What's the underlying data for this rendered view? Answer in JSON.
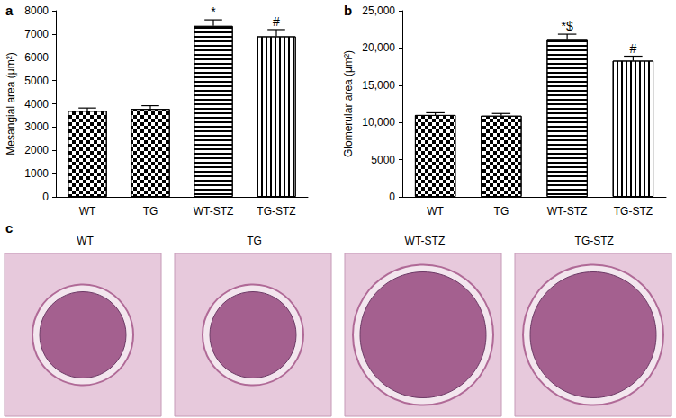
{
  "chart_data": [
    {
      "type": "bar",
      "panel": "a",
      "y_label": "Mesangial area (μm²)",
      "categories": [
        "WT",
        "TG",
        "WT-STZ",
        "TG-STZ"
      ],
      "values": [
        3700,
        3780,
        7350,
        6900
      ],
      "errors": [
        120,
        140,
        260,
        290
      ],
      "annotations": [
        {
          "category": "WT-STZ",
          "text": "*"
        },
        {
          "category": "TG-STZ",
          "text": "#"
        }
      ],
      "color": "#000000",
      "ylim": [
        0,
        8000
      ],
      "yticks": [
        0,
        1000,
        2000,
        3000,
        4000,
        5000,
        6000,
        7000,
        8000
      ]
    },
    {
      "type": "bar",
      "panel": "b",
      "y_label": "Glomerular area (μm²)",
      "categories": [
        "WT",
        "TG",
        "WT-STZ",
        "TG-STZ"
      ],
      "values": [
        11000,
        10900,
        21200,
        18300
      ],
      "errors": [
        300,
        300,
        650,
        600
      ],
      "annotations": [
        {
          "category": "WT-STZ",
          "text": "*$"
        },
        {
          "category": "TG-STZ",
          "text": "#"
        }
      ],
      "color": "#000000",
      "ylim": [
        0,
        25000
      ],
      "yticks": [
        0,
        5000,
        {
          "value": 10000,
          "label": "10,000"
        },
        {
          "value": 15000,
          "label": "15,000"
        },
        {
          "value": 20000,
          "label": "20,000"
        },
        {
          "value": 25000,
          "label": "25,000"
        }
      ]
    }
  ],
  "micrographs": {
    "panel": "c",
    "labels": [
      "WT",
      "TG",
      "WT-STZ",
      "TG-STZ"
    ]
  }
}
